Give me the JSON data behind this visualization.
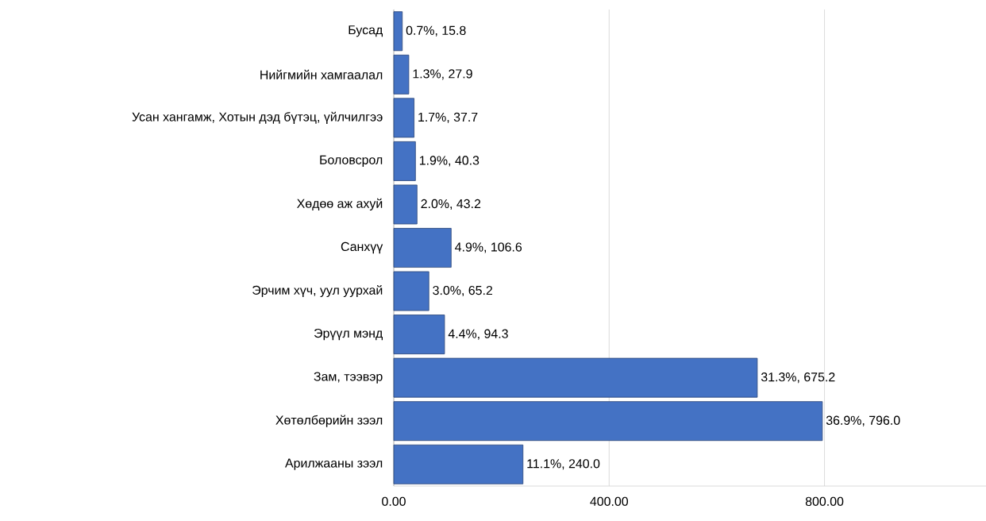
{
  "chart_data": {
    "type": "bar",
    "orientation": "horizontal",
    "color": "#4472c4",
    "categories": [
      "Бусад",
      "Нийгмийн хамгаалал",
      "Усан хангамж, Хотын дэд бүтэц, үйлчилгээ",
      "Боловсрол",
      "Хөдөө аж ахуй",
      "Санхүү",
      "Эрчим хүч, уул уурхай",
      "Эрүүл мэнд",
      "Зам, тээвэр",
      "Хөтөлбөрийн зээл",
      "Арилжааны зээл"
    ],
    "values": [
      15.8,
      27.9,
      37.7,
      40.3,
      43.2,
      106.6,
      65.2,
      94.3,
      675.2,
      796.0,
      240.0
    ],
    "value_labels": [
      "0.7%, 15.8",
      "1.3%, 27.9",
      "1.7%, 37.7",
      "1.9%, 40.3",
      "2.0%, 43.2",
      "4.9%, 106.6",
      "3.0%, 65.2",
      "4.4%, 94.3",
      "31.3%, 675.2",
      "36.9%, 796.0",
      "11.1%, 240.0"
    ],
    "xlim": [
      0,
      1100
    ],
    "xticks": [
      {
        "value": 0,
        "label": "0.00"
      },
      {
        "value": 400,
        "label": "400.00"
      },
      {
        "value": 800,
        "label": "800.00"
      }
    ],
    "grid": "x"
  }
}
